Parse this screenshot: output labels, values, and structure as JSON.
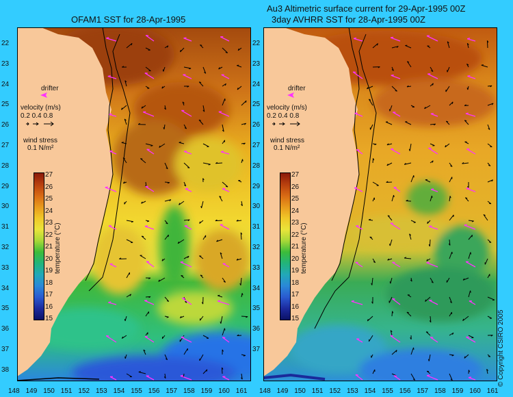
{
  "page": {
    "left_title": "OFAM1 SST for 28-Apr-1995",
    "right_title_line1": "Au3 Altimetric surface current for 29-Apr-1995 00Z",
    "right_title_line2": "3day AVHRR SST for 28-Apr-1995 00Z",
    "copyright": "© Copyright CSIRO 2005"
  },
  "axes": {
    "lat_ticks": [
      "22",
      "23",
      "24",
      "25",
      "26",
      "27",
      "28",
      "29",
      "30",
      "31",
      "32",
      "33",
      "34",
      "35",
      "36",
      "37",
      "38"
    ],
    "lon_ticks_left": [
      "148",
      "149",
      "150",
      "151",
      "152",
      "153",
      "154",
      "155",
      "156",
      "157",
      "158",
      "159",
      "160",
      "161"
    ],
    "lon_ticks_right": [
      "148",
      "149",
      "150",
      "151",
      "152",
      "153",
      "154",
      "155",
      "156",
      "157",
      "158",
      "159",
      "160",
      "161"
    ]
  },
  "legend": {
    "drifter_label": "drifter",
    "velocity_label": "velocity (m/s)",
    "velocity_values": "0.2 0.4 0.8",
    "wind_label": "wind stress",
    "wind_value": "0.1 N/m²",
    "colorbar_title": "temperature (°C)",
    "colorbar_ticks": [
      "27",
      "26",
      "25",
      "24",
      "23",
      "22",
      "21",
      "20",
      "19",
      "18",
      "17",
      "16",
      "15"
    ],
    "colors": {
      "land": "#f8c89a",
      "background": "#33ccff",
      "wind_arrow": "#ff33ff",
      "current_arrow": "#000000",
      "drifter": "#ff33ff"
    }
  }
}
